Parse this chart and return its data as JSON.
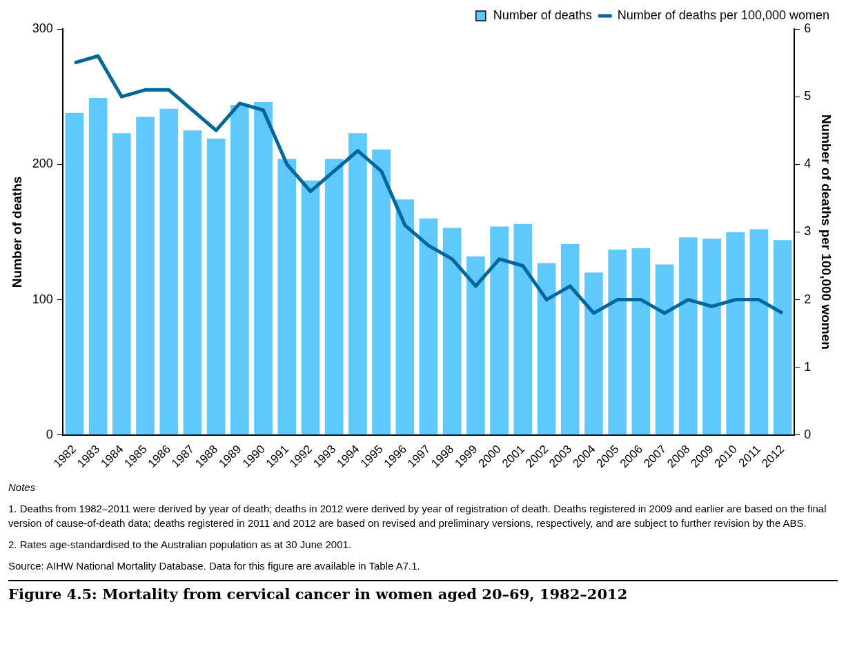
{
  "chart_data": {
    "type": "bar",
    "title": "Figure 4.5: Mortality from cervical cancer in women aged 20–69, 1982–2012",
    "categories": [
      "1982",
      "1983",
      "1984",
      "1985",
      "1986",
      "1987",
      "1988",
      "1989",
      "1990",
      "1991",
      "1992",
      "1993",
      "1994",
      "1995",
      "1996",
      "1997",
      "1998",
      "1999",
      "2000",
      "2001",
      "2002",
      "2003",
      "2004",
      "2005",
      "2006",
      "2007",
      "2008",
      "2009",
      "2010",
      "2011",
      "2012"
    ],
    "series": [
      {
        "name": "Number of deaths",
        "color": "#5fc8fd",
        "values": [
          238,
          249,
          223,
          235,
          241,
          225,
          219,
          244,
          246,
          204,
          188,
          204,
          223,
          211,
          174,
          160,
          153,
          132,
          154,
          156,
          127,
          141,
          120,
          137,
          138,
          126,
          146,
          145,
          150,
          152,
          144
        ]
      },
      {
        "name": "Number of deaths per 100,000 women",
        "type": "line",
        "axis": "y2",
        "color": "#00679b",
        "values": [
          5.5,
          5.6,
          5.0,
          5.1,
          5.1,
          4.8,
          4.5,
          4.9,
          4.8,
          4.0,
          3.6,
          3.9,
          4.2,
          3.9,
          3.1,
          2.8,
          2.6,
          2.2,
          2.6,
          2.5,
          2.0,
          2.2,
          1.8,
          2.0,
          2.0,
          1.8,
          2.0,
          1.9,
          2.0,
          2.0,
          1.8
        ]
      }
    ],
    "ylabel": "Number of deaths",
    "y2label": "Number of deaths per 100,000 women",
    "ylim": [
      0,
      300
    ],
    "yticks": [
      0,
      100,
      200,
      300
    ],
    "y2lim": [
      0,
      6
    ],
    "y2ticks": [
      0,
      1,
      2,
      3,
      4,
      5,
      6
    ],
    "grid": false,
    "legend": "top right",
    "marker": "none",
    "line_style": "solid",
    "annotations": [
      "Notes",
      "1. Deaths from 1982–2011 were derived by year of death; deaths in 2012 were derived by year of registration of death. Deaths registered in 2009 and earlier are based on the final version of cause-of-death data; deaths registered in 2011 and 2012 are based on revised and preliminary versions, respectively, and are subject to further revision by the ABS.",
      "2. Rates age-standardised to the Australian population as at 30 June 2001.",
      "Source: AIHW National Mortality Database. Data for this figure are available in Table A7.1."
    ]
  }
}
